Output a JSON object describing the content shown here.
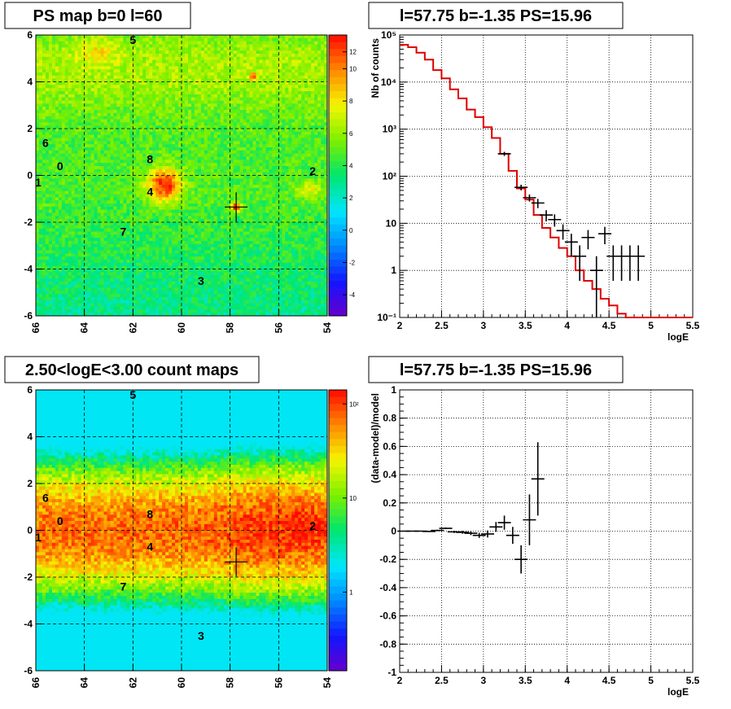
{
  "chart_data": [
    {
      "type": "heatmap",
      "title": "PS map b=0 l=60",
      "x_ticks": [
        "66",
        "64",
        "62",
        "60",
        "58",
        "56",
        "54"
      ],
      "y_ticks": [
        "6",
        "4",
        "2",
        "0",
        "-2",
        "-4",
        "-6"
      ],
      "xlim": [
        66,
        54
      ],
      "ylim": [
        -6,
        6
      ],
      "colorbar_ticks": [
        "12",
        "10",
        "8",
        "6",
        "4",
        "2",
        "0",
        "-2",
        "-4"
      ],
      "colorbar_range": [
        -5,
        12
      ],
      "marker": {
        "l": 57.75,
        "b": -1.35
      },
      "sources": [
        {
          "label": "5",
          "l": 62.0,
          "b": 5.8
        },
        {
          "label": "6",
          "l": 65.6,
          "b": 1.4
        },
        {
          "label": "0",
          "l": 65.0,
          "b": 0.4
        },
        {
          "label": "1",
          "l": 65.9,
          "b": -0.3
        },
        {
          "label": "8",
          "l": 61.3,
          "b": 0.7
        },
        {
          "label": "4",
          "l": 61.3,
          "b": -0.7
        },
        {
          "label": "2",
          "l": 54.6,
          "b": 0.2
        },
        {
          "label": "7",
          "l": 62.4,
          "b": -2.4
        },
        {
          "label": "3",
          "l": 59.2,
          "b": -4.5
        }
      ]
    },
    {
      "type": "line",
      "title": "l=57.75 b=-1.35 PS=15.96",
      "xlabel": "logE",
      "ylabel": "Nb of counts",
      "xlim": [
        2,
        5.5
      ],
      "ylim": [
        0.1,
        100000
      ],
      "yscale": "log",
      "grid": true,
      "x_ticks": [
        "2",
        "2.5",
        "3",
        "3.5",
        "4",
        "4.5",
        "5",
        "5.5"
      ],
      "y_ticks": [
        "10⁵",
        "10⁴",
        "10³",
        "10²",
        "10",
        "1",
        "10⁻¹"
      ],
      "series": [
        {
          "name": "model",
          "color": "#e00000",
          "bin_edges": [
            2.0,
            2.1,
            2.2,
            2.3,
            2.4,
            2.5,
            2.6,
            2.7,
            2.8,
            2.9,
            3.0,
            3.1,
            3.2,
            3.3,
            3.4,
            3.5,
            3.6,
            3.7,
            3.8,
            3.9,
            4.0,
            4.1,
            4.2,
            4.3,
            4.4,
            4.5,
            4.6,
            4.7,
            4.8,
            4.9,
            5.0,
            5.1,
            5.2,
            5.3,
            5.4,
            5.5
          ],
          "values": [
            62000,
            55000,
            42000,
            30000,
            18000,
            12000,
            7000,
            4500,
            2600,
            1800,
            1100,
            650,
            300,
            130,
            55,
            32,
            15,
            8,
            5,
            3,
            2,
            1,
            0.6,
            0.4,
            0.25,
            0.18,
            0.12,
            0.1,
            0.1,
            0.1,
            0.1,
            0.1,
            0.1,
            0.1,
            0.1
          ]
        },
        {
          "name": "data",
          "color": "#000000",
          "points": [
            {
              "x": 3.25,
              "y": 300,
              "lo": 270,
              "hi": 330
            },
            {
              "x": 3.45,
              "y": 58,
              "lo": 50,
              "hi": 66
            },
            {
              "x": 3.55,
              "y": 35,
              "lo": 29,
              "hi": 41
            },
            {
              "x": 3.65,
              "y": 27,
              "lo": 21,
              "hi": 33
            },
            {
              "x": 3.75,
              "y": 15,
              "lo": 11,
              "hi": 19
            },
            {
              "x": 3.85,
              "y": 12,
              "lo": 8.5,
              "hi": 15.5
            },
            {
              "x": 3.95,
              "y": 7,
              "lo": 4.5,
              "hi": 9.5
            },
            {
              "x": 4.05,
              "y": 4,
              "lo": 2,
              "hi": 6
            },
            {
              "x": 4.15,
              "y": 2,
              "lo": 0.6,
              "hi": 3.4
            },
            {
              "x": 4.25,
              "y": 5,
              "lo": 2.8,
              "hi": 7.2
            },
            {
              "x": 4.35,
              "y": 1,
              "lo": 0.1,
              "hi": 2
            },
            {
              "x": 4.45,
              "y": 6,
              "lo": 3.6,
              "hi": 8.4
            },
            {
              "x": 4.55,
              "y": 2,
              "lo": 0.6,
              "hi": 3.4
            },
            {
              "x": 4.65,
              "y": 2,
              "lo": 0.6,
              "hi": 3.4
            },
            {
              "x": 4.75,
              "y": 2,
              "lo": 0.6,
              "hi": 3.4
            },
            {
              "x": 4.85,
              "y": 2,
              "lo": 0.6,
              "hi": 3.4
            }
          ]
        }
      ]
    },
    {
      "type": "heatmap",
      "title": "2.50<logE<3.00 count maps",
      "x_ticks": [
        "66",
        "64",
        "62",
        "60",
        "58",
        "56",
        "54"
      ],
      "y_ticks": [
        "6",
        "4",
        "2",
        "0",
        "-2",
        "-4",
        "-6"
      ],
      "xlim": [
        66,
        54
      ],
      "ylim": [
        -6,
        6
      ],
      "colorbar_ticks": [
        "10²",
        "10",
        "1"
      ],
      "marker": {
        "l": 57.75,
        "b": -1.35
      }
    },
    {
      "type": "scatter",
      "title": "l=57.75 b=-1.35 PS=15.96",
      "xlabel": "logE",
      "ylabel": "(data-model)/model",
      "xlim": [
        2,
        5.5
      ],
      "ylim": [
        -1,
        1
      ],
      "grid": true,
      "x_ticks": [
        "2",
        "2.5",
        "3",
        "3.5",
        "4",
        "4.5",
        "5",
        "5.5"
      ],
      "y_ticks": [
        "1",
        "0.8",
        "0.6",
        "0.4",
        "0.2",
        "0",
        "-0.2",
        "-0.4",
        "-0.6",
        "-0.8",
        "-1"
      ],
      "points": [
        {
          "x": 2.05,
          "y": 0.0,
          "err": 0.003
        },
        {
          "x": 2.15,
          "y": 0.0,
          "err": 0.003
        },
        {
          "x": 2.25,
          "y": 0.0,
          "err": 0.003
        },
        {
          "x": 2.35,
          "y": -0.002,
          "err": 0.004
        },
        {
          "x": 2.45,
          "y": 0.005,
          "err": 0.005
        },
        {
          "x": 2.55,
          "y": 0.02,
          "err": 0.006
        },
        {
          "x": 2.65,
          "y": -0.005,
          "err": 0.008
        },
        {
          "x": 2.75,
          "y": -0.008,
          "err": 0.01
        },
        {
          "x": 2.85,
          "y": -0.015,
          "err": 0.013
        },
        {
          "x": 2.95,
          "y": -0.03,
          "err": 0.018
        },
        {
          "x": 3.05,
          "y": -0.02,
          "err": 0.025
        },
        {
          "x": 3.15,
          "y": 0.03,
          "err": 0.035
        },
        {
          "x": 3.25,
          "y": 0.06,
          "err": 0.05
        },
        {
          "x": 3.35,
          "y": -0.03,
          "err": 0.06
        },
        {
          "x": 3.45,
          "y": -0.2,
          "err": 0.1
        },
        {
          "x": 3.55,
          "y": 0.08,
          "err": 0.18
        },
        {
          "x": 3.65,
          "y": 0.37,
          "err": 0.26
        }
      ]
    }
  ]
}
